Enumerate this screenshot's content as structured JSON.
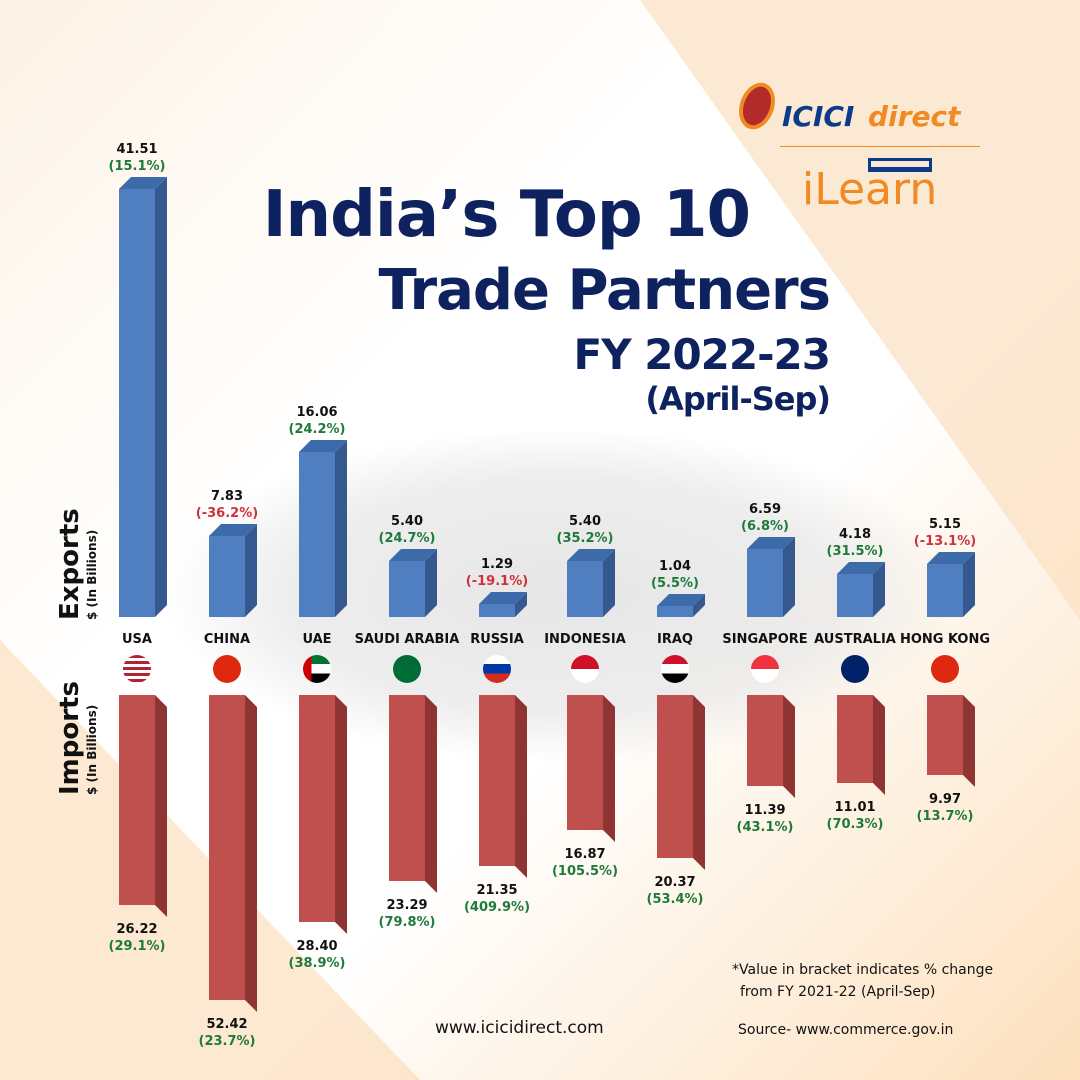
{
  "logo": {
    "brand1": "ICICI",
    "brand2": "direct",
    "sub": "iLearn"
  },
  "title": {
    "line1": "India’s Top 10",
    "line2": "Trade Partners",
    "line3": "FY 2022-23",
    "line4": "(April-Sep)"
  },
  "colors": {
    "export": "#4f7fc1",
    "import": "#c0504d",
    "positive": "#1e7a3a",
    "negative": "#d0303a",
    "title": "#0f2260"
  },
  "chart_data": {
    "type": "bar",
    "title": "India’s Top 10 Trade Partners FY 2022-23 (April-Sep)",
    "categories": [
      "USA",
      "CHINA",
      "UAE",
      "SAUDI ARABIA",
      "RUSSIA",
      "INDONESIA",
      "IRAQ",
      "SINGAPORE",
      "AUSTRALIA",
      "HONG KONG"
    ],
    "series": [
      {
        "name": "Exports",
        "unit": "$ (In Billions)",
        "values": [
          41.51,
          7.83,
          16.06,
          5.4,
          1.29,
          5.4,
          1.04,
          6.59,
          4.18,
          5.15
        ],
        "labels": [
          "41.51",
          "7.83",
          "16.06",
          "5.40",
          "1.29",
          "5.40",
          "1.04",
          "6.59",
          "4.18",
          "5.15"
        ],
        "change": [
          "(15.1%)",
          "(-36.2%)",
          "(24.2%)",
          "(24.7%)",
          "(-19.1%)",
          "(35.2%)",
          "(5.5%)",
          "(6.8%)",
          "(31.5%)",
          "(-13.1%)"
        ]
      },
      {
        "name": "Imports",
        "unit": "$ (In Billions)",
        "values": [
          26.22,
          52.42,
          28.4,
          23.29,
          21.35,
          16.87,
          20.37,
          11.39,
          11.01,
          9.97
        ],
        "labels": [
          "26.22",
          "52.42",
          "28.40",
          "23.29",
          "21.35",
          "16.87",
          "20.37",
          "11.39",
          "11.01",
          "9.97"
        ],
        "change": [
          "(29.1%)",
          "(23.7%)",
          "(38.9%)",
          "(79.8%)",
          "(409.9%)",
          "(105.5%)",
          "(53.4%)",
          "(43.1%)",
          "(70.3%)",
          "(13.7%)"
        ]
      }
    ],
    "flags": [
      "us",
      "cn",
      "ae",
      "sa",
      "ru",
      "id",
      "iq",
      "sg",
      "au",
      "hk"
    ]
  },
  "axis": {
    "exports": "Exports",
    "imports": "Imports",
    "unit": "$ (In Billions)"
  },
  "footer": {
    "website": "www.icicidirect.com",
    "note1": "*Value in bracket indicates % change",
    "note2": "from FY 2021-22 (April-Sep)",
    "source": "Source- www.commerce.gov.in"
  }
}
